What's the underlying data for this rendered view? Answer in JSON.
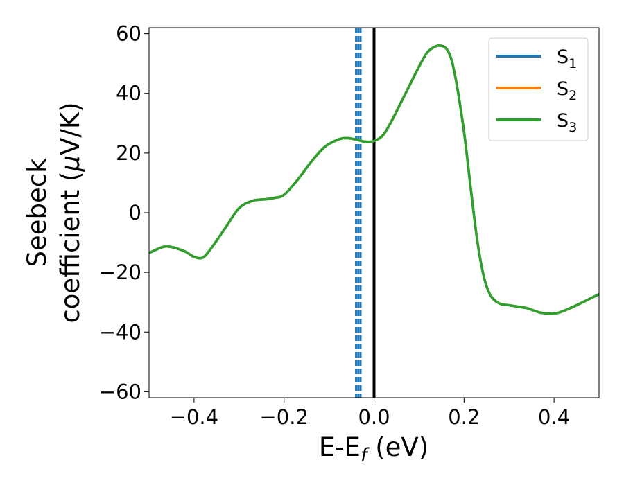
{
  "chart_data": {
    "type": "line",
    "xlabel": {
      "main": "E-E",
      "sub": "f",
      "unit": " (eV)"
    },
    "ylabel": {
      "line1": "Seebeck",
      "line2": "coefficient  (",
      "mu": "μ",
      "unit": "V/K)"
    },
    "xlim": [
      -0.5,
      0.5
    ],
    "ylim": [
      -62,
      62
    ],
    "x_ticks": [
      -0.4,
      -0.2,
      0.0,
      0.2,
      0.4
    ],
    "x_tick_labels": [
      "−0.4",
      "−0.2",
      "0.0",
      "0.2",
      "0.4"
    ],
    "y_ticks": [
      -60,
      -40,
      -20,
      0,
      20,
      40,
      60
    ],
    "y_tick_labels": [
      "−60",
      "−40",
      "−20",
      "0",
      "20",
      "40",
      "60"
    ],
    "legend_position": "top-right",
    "series": [
      {
        "name": "S",
        "sub": "1",
        "color": "#1f77b4",
        "x": [
          -0.5,
          -0.47,
          -0.45,
          -0.42,
          -0.4,
          -0.38,
          -0.36,
          -0.33,
          -0.3,
          -0.27,
          -0.24,
          -0.22,
          -0.2,
          -0.17,
          -0.14,
          -0.11,
          -0.08,
          -0.06,
          -0.04,
          -0.02,
          0.0,
          0.02,
          0.04,
          0.06,
          0.08,
          0.1,
          0.12,
          0.145,
          0.165,
          0.18,
          0.2,
          0.215,
          0.23,
          0.245,
          0.26,
          0.28,
          0.3,
          0.32,
          0.34,
          0.37,
          0.4,
          0.42,
          0.45,
          0.5
        ],
        "y": [
          -13.5,
          -11.5,
          -11.5,
          -13,
          -14.8,
          -15,
          -11.5,
          -5,
          1.5,
          4,
          4.5,
          5,
          6,
          11,
          17,
          22,
          24.5,
          25,
          24.5,
          23.8,
          24,
          26,
          31,
          37,
          43,
          49,
          54,
          56,
          54,
          46,
          27,
          8,
          -10,
          -22,
          -28,
          -30.5,
          -31,
          -31.5,
          -32,
          -33.5,
          -33.8,
          -33,
          -31,
          -27.3
        ]
      },
      {
        "name": "S",
        "sub": "2",
        "color": "#ff7f0e",
        "x": [
          -0.5,
          -0.47,
          -0.45,
          -0.42,
          -0.4,
          -0.38,
          -0.36,
          -0.33,
          -0.3,
          -0.27,
          -0.24,
          -0.22,
          -0.2,
          -0.17,
          -0.14,
          -0.11,
          -0.08,
          -0.06,
          -0.04,
          -0.02,
          0.0,
          0.02,
          0.04,
          0.06,
          0.08,
          0.1,
          0.12,
          0.145,
          0.165,
          0.18,
          0.2,
          0.215,
          0.23,
          0.245,
          0.26,
          0.28,
          0.3,
          0.32,
          0.34,
          0.37,
          0.4,
          0.42,
          0.45,
          0.5
        ],
        "y": [
          -13.5,
          -11.5,
          -11.5,
          -13,
          -14.8,
          -15,
          -11.5,
          -5,
          1.5,
          4,
          4.5,
          5,
          6,
          11,
          17,
          22,
          24.5,
          25,
          24.5,
          23.8,
          24,
          26,
          31,
          37,
          43,
          49,
          54,
          56,
          54,
          46,
          27,
          8,
          -10,
          -22,
          -28,
          -30.5,
          -31,
          -31.5,
          -32,
          -33.5,
          -33.8,
          -33,
          -31,
          -27.3
        ]
      },
      {
        "name": "S",
        "sub": "3",
        "color": "#2ca02c",
        "x": [
          -0.5,
          -0.47,
          -0.45,
          -0.42,
          -0.4,
          -0.38,
          -0.36,
          -0.33,
          -0.3,
          -0.27,
          -0.24,
          -0.22,
          -0.2,
          -0.17,
          -0.14,
          -0.11,
          -0.08,
          -0.06,
          -0.04,
          -0.02,
          0.0,
          0.02,
          0.04,
          0.06,
          0.08,
          0.1,
          0.12,
          0.145,
          0.165,
          0.18,
          0.2,
          0.215,
          0.23,
          0.245,
          0.26,
          0.28,
          0.3,
          0.32,
          0.34,
          0.37,
          0.4,
          0.42,
          0.45,
          0.5
        ],
        "y": [
          -13.5,
          -11.5,
          -11.5,
          -13,
          -14.8,
          -15,
          -11.5,
          -5,
          1.5,
          4,
          4.5,
          5,
          6,
          11,
          17,
          22,
          24.5,
          25,
          24.5,
          23.8,
          24,
          26,
          31,
          37,
          43,
          49,
          54,
          56,
          54,
          46,
          27,
          8,
          -10,
          -22,
          -28,
          -30.5,
          -31,
          -31.5,
          -32,
          -33.5,
          -33.8,
          -33,
          -31,
          -27.3
        ]
      }
    ],
    "reference_lines": [
      {
        "x": 0.0,
        "style": "solid",
        "color": "#000000"
      },
      {
        "x": -0.04,
        "style": "dashed",
        "color": "#1f77b4"
      },
      {
        "x": -0.035,
        "style": "dashed",
        "color": "#1f77b4"
      },
      {
        "x": -0.03,
        "style": "dashed",
        "color": "#1f77b4"
      }
    ]
  }
}
